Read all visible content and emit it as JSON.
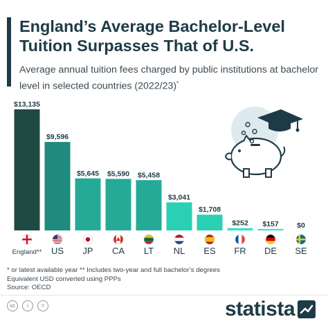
{
  "header": {
    "title": "England’s Average Bachelor-Level Tuition Surpasses That of U.S.",
    "subtitle": "Average annual tuition fees charged by public institutions at bachelor level in selected countries (2022/23)",
    "subtitle_mark": "*"
  },
  "chart_data": {
    "type": "bar",
    "categories": [
      "England**",
      "US",
      "JP",
      "CA",
      "LT",
      "NL",
      "ES",
      "FR",
      "DE",
      "SE"
    ],
    "values": [
      13135,
      9596,
      5645,
      5590,
      5458,
      3041,
      1708,
      252,
      157,
      0
    ],
    "value_labels": [
      "$13,135",
      "$9,596",
      "$5,645",
      "$5,590",
      "$5,458",
      "$3,041",
      "$1,708",
      "$252",
      "$157",
      "$0"
    ],
    "bar_colors": [
      "#1f4a44",
      "#1f8a7e",
      "#25aa97",
      "#25aa97",
      "#25aa97",
      "#2ad0b3",
      "#2ad0b3",
      "#35e3c6",
      "#35e3c6",
      "#35e3c6"
    ],
    "flags": [
      "england-flag-icon",
      "us-flag-icon",
      "japan-flag-icon",
      "canada-flag-icon",
      "lithuania-flag-icon",
      "netherlands-flag-icon",
      "spain-flag-icon",
      "france-flag-icon",
      "germany-flag-icon",
      "sweden-flag-icon"
    ],
    "ylim": [
      0,
      13135
    ],
    "grid": false,
    "legend": "none"
  },
  "footnotes": {
    "line1": "* or latest available year    ** Includes two-year and full bachelor’s degrees",
    "line2": "Equivalent USD converted using PPPs",
    "line3": "Source: OECD"
  },
  "footer": {
    "brand": "statista",
    "license_icons": [
      "cc",
      "i",
      "="
    ]
  },
  "colors": {
    "title": "#1d3b47",
    "accent": "#25aa97"
  }
}
